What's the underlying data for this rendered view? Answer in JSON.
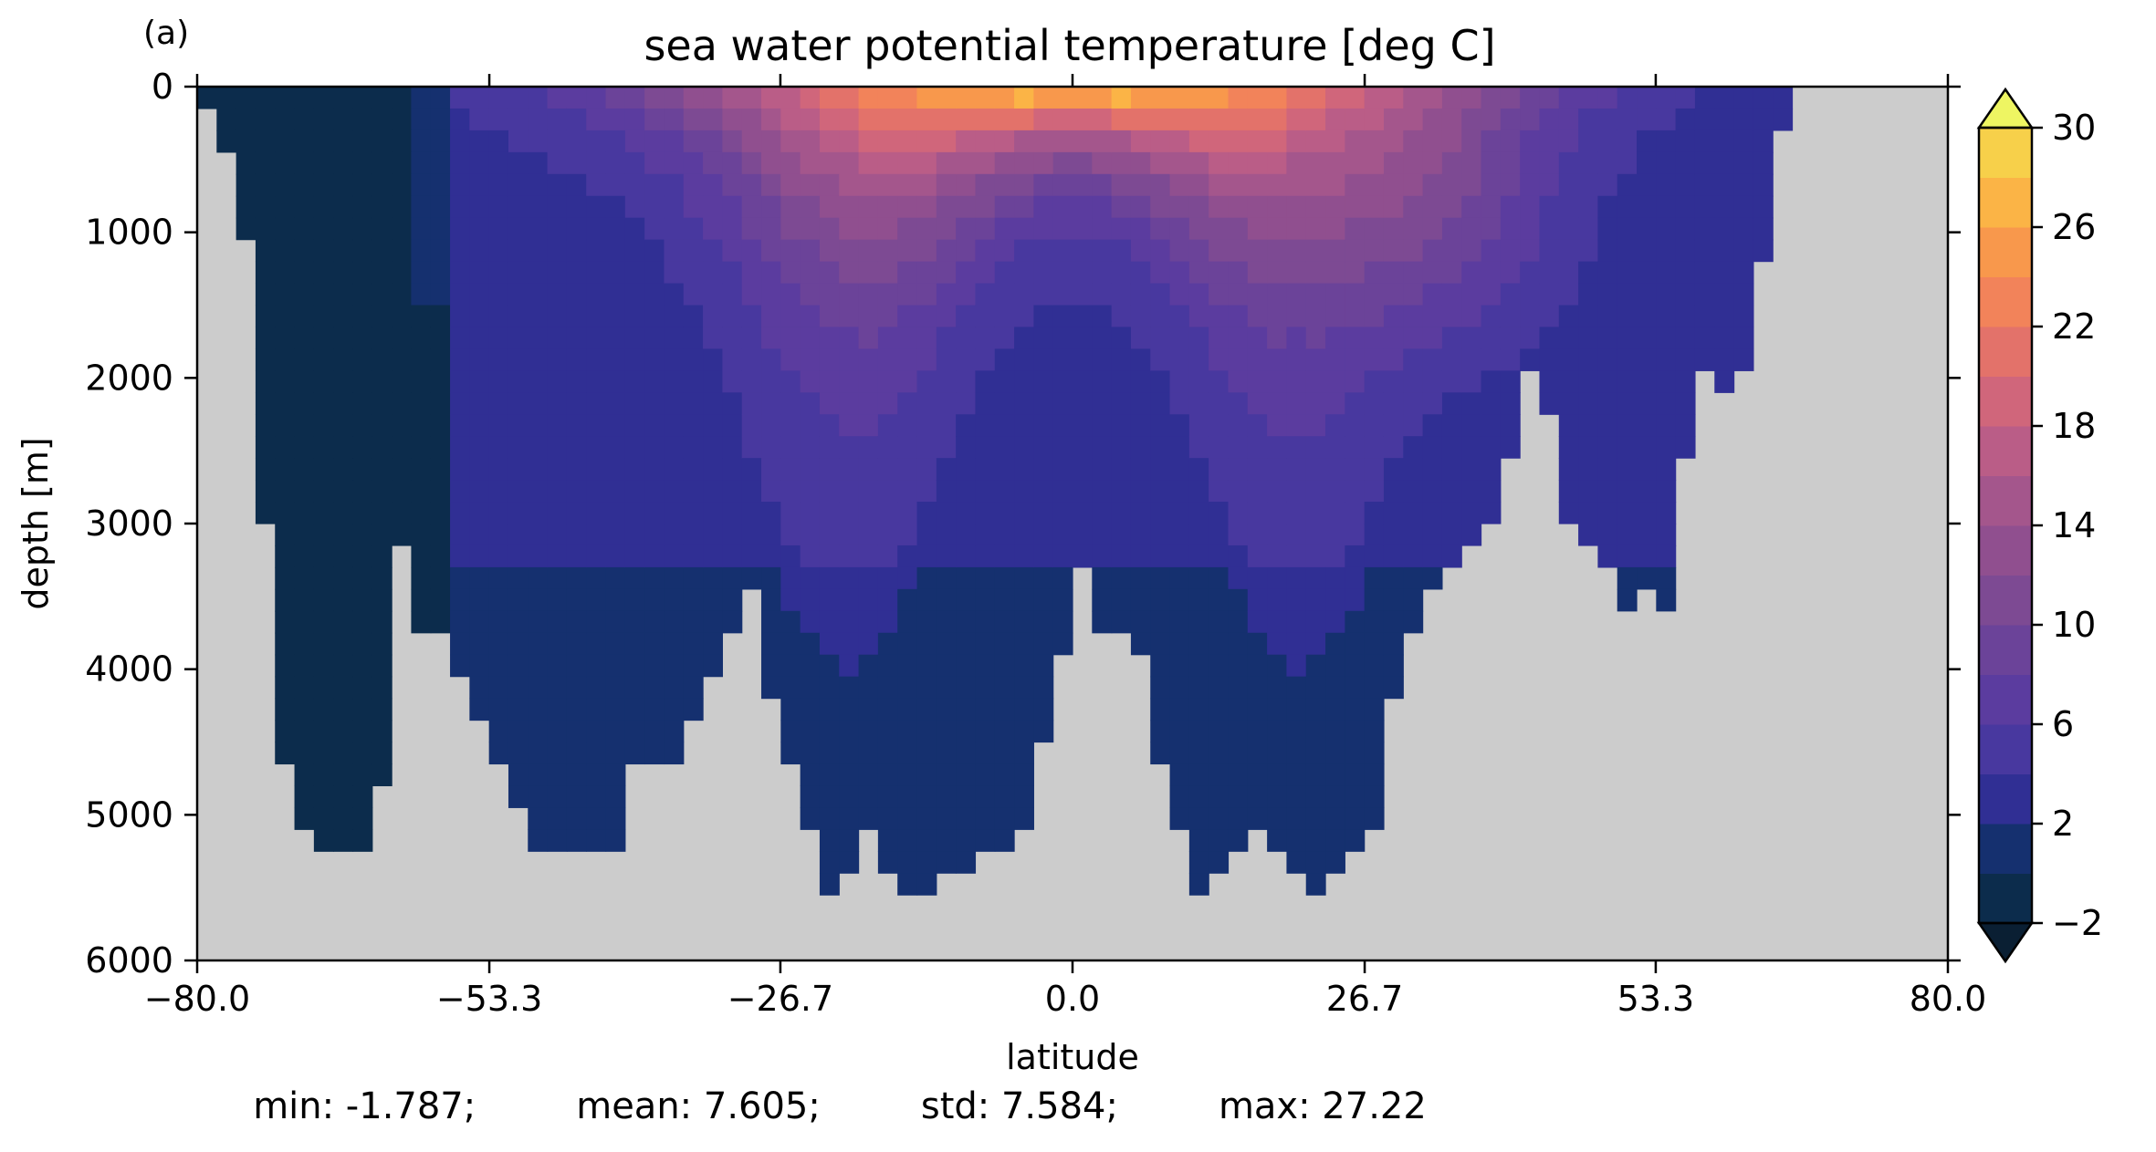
{
  "panel_label": "(a)",
  "chart_data": {
    "type": "heatmap",
    "title": "sea water potential temperature [deg C]",
    "xlabel": "latitude",
    "ylabel": "depth [m]",
    "xlim": [
      -80.0,
      80.0
    ],
    "ylim": [
      6000,
      0
    ],
    "y_inverted": true,
    "x_ticks": [
      "−80.0",
      "−53.3",
      "−26.7",
      "0.0",
      "26.7",
      "53.3",
      "80.0"
    ],
    "x_tick_values": [
      -80.0,
      -53.3,
      -26.7,
      0.0,
      26.7,
      53.3,
      80.0
    ],
    "y_ticks": [
      "0",
      "1000",
      "2000",
      "3000",
      "4000",
      "5000",
      "6000"
    ],
    "y_tick_values": [
      0,
      1000,
      2000,
      3000,
      4000,
      5000,
      6000
    ],
    "colorbar": {
      "levels": [
        -2,
        0,
        2,
        4,
        6,
        8,
        10,
        12,
        14,
        16,
        18,
        20,
        22,
        24,
        26,
        28,
        30
      ],
      "tick_labels": [
        "−2",
        "2",
        "6",
        "10",
        "14",
        "18",
        "22",
        "26",
        "30"
      ],
      "tick_values": [
        -2,
        2,
        6,
        10,
        14,
        18,
        22,
        26,
        30
      ],
      "colors": [
        "#0c2c4c",
        "#15306f",
        "#302f94",
        "#48389f",
        "#5b3c9f",
        "#6b4399",
        "#7d4a93",
        "#904f8f",
        "#a4568c",
        "#ba5d87",
        "#d0667b",
        "#e3726a",
        "#f2835a",
        "#f8984c",
        "#fbb446",
        "#f7d04a",
        "#f0e25c"
      ],
      "extend": "both",
      "under_color": "#0a1f33",
      "over_color": "#eef562"
    },
    "land_color": "#cccccc",
    "field_description": "Latitude-depth section; values in deg C",
    "stats": {
      "min": "min: -1.787;",
      "mean": "mean: 7.605;",
      "std": "std: 7.584;",
      "max": "max: 27.22"
    }
  }
}
